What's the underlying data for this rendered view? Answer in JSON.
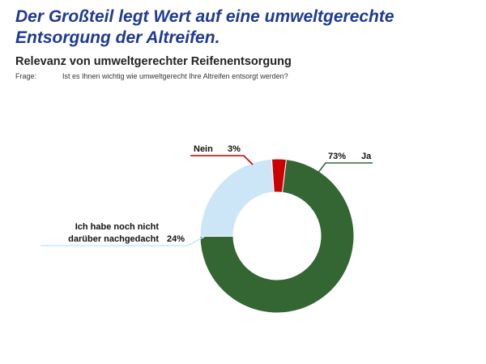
{
  "page": {
    "headline": "Der Großteil legt Wert auf eine umweltgerechte Entsorgung der Altreifen.",
    "subtitle": "Relevanz von umweltgerechter Reifenentsorgung",
    "question_label": "Frage:",
    "question_text": "Ist es Ihnen wichtig wie umweltgerecht Ihre Altreifen entsorgt werden?"
  },
  "chart_data": {
    "type": "pie",
    "style": "donut",
    "title": "Relevanz von umweltgerechter Reifenentsorgung",
    "slices": [
      {
        "label": "Ja",
        "value": 73,
        "value_label": "73%",
        "color": "#336633"
      },
      {
        "label": "Ich habe noch nicht darüber nachgedacht",
        "label_lines": [
          "Ich habe noch nicht",
          "darüber nachgedacht"
        ],
        "value": 24,
        "value_label": "24%",
        "color": "#cce6f7"
      },
      {
        "label": "Nein",
        "value": 3,
        "value_label": "3%",
        "color": "#cc0000"
      }
    ]
  }
}
